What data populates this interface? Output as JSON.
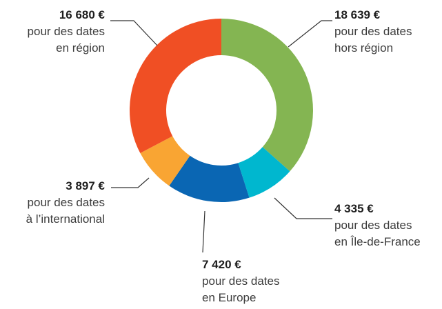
{
  "chart_data": {
    "type": "donut",
    "categories": [
      "pour des dates\nhors région",
      "pour des dates\nen Île-de-France",
      "pour des dates\nen Europe",
      "pour des dates\nà l’international",
      "pour des dates\nen région"
    ],
    "values": [
      18639,
      4335,
      7420,
      3897,
      16680
    ],
    "value_labels": [
      "18 639 €",
      "4 335 €",
      "7 420 €",
      "3 897 €",
      "16 680 €"
    ],
    "colors": [
      "#84b552",
      "#00b7cf",
      "#0a66b3",
      "#f9a533",
      "#f04f24"
    ]
  }
}
